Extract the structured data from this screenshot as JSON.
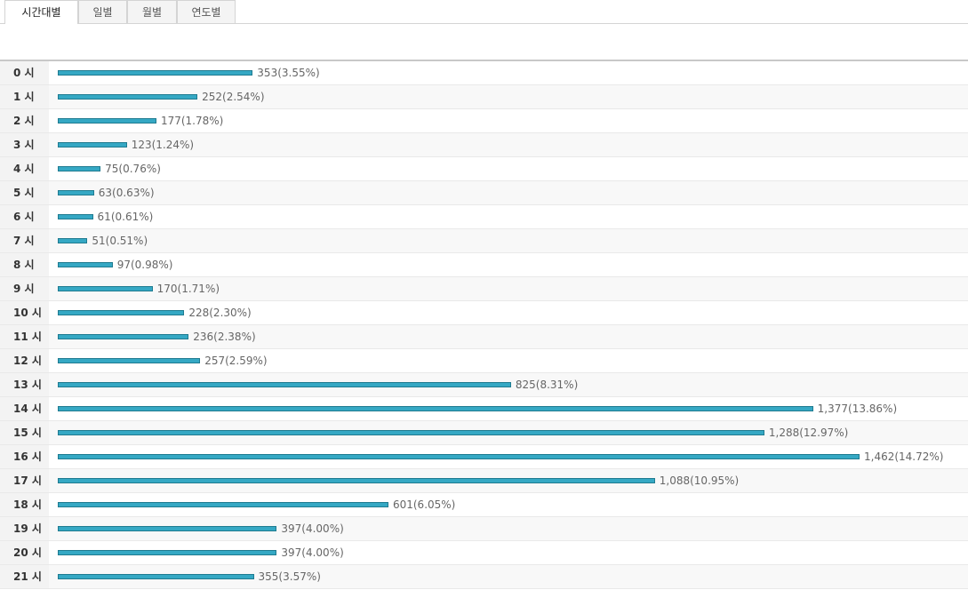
{
  "tabs": [
    "시간대별",
    "일별",
    "월별",
    "연도별"
  ],
  "rows": [
    {
      "label": "0 시",
      "value": 353,
      "value_label": "353(3.55%)"
    },
    {
      "label": "1 시",
      "value": 252,
      "value_label": "252(2.54%)"
    },
    {
      "label": "2 시",
      "value": 177,
      "value_label": "177(1.78%)"
    },
    {
      "label": "3 시",
      "value": 123,
      "value_label": "123(1.24%)"
    },
    {
      "label": "4 시",
      "value": 75,
      "value_label": "75(0.76%)"
    },
    {
      "label": "5 시",
      "value": 63,
      "value_label": "63(0.63%)"
    },
    {
      "label": "6 시",
      "value": 61,
      "value_label": "61(0.61%)"
    },
    {
      "label": "7 시",
      "value": 51,
      "value_label": "51(0.51%)"
    },
    {
      "label": "8 시",
      "value": 97,
      "value_label": "97(0.98%)"
    },
    {
      "label": "9 시",
      "value": 170,
      "value_label": "170(1.71%)"
    },
    {
      "label": "10 시",
      "value": 228,
      "value_label": "228(2.30%)"
    },
    {
      "label": "11 시",
      "value": 236,
      "value_label": "236(2.38%)"
    },
    {
      "label": "12 시",
      "value": 257,
      "value_label": "257(2.59%)"
    },
    {
      "label": "13 시",
      "value": 825,
      "value_label": "825(8.31%)"
    },
    {
      "label": "14 시",
      "value": 1377,
      "value_label": "1,377(13.86%)"
    },
    {
      "label": "15 시",
      "value": 1288,
      "value_label": "1,288(12.97%)"
    },
    {
      "label": "16 시",
      "value": 1462,
      "value_label": "1,462(14.72%)"
    },
    {
      "label": "17 시",
      "value": 1088,
      "value_label": "1,088(10.95%)"
    },
    {
      "label": "18 시",
      "value": 601,
      "value_label": "601(6.05%)"
    },
    {
      "label": "19 시",
      "value": 397,
      "value_label": "397(4.00%)"
    },
    {
      "label": "20 시",
      "value": 397,
      "value_label": "397(4.00%)"
    },
    {
      "label": "21 시",
      "value": 355,
      "value_label": "355(3.57%)"
    }
  ]
}
